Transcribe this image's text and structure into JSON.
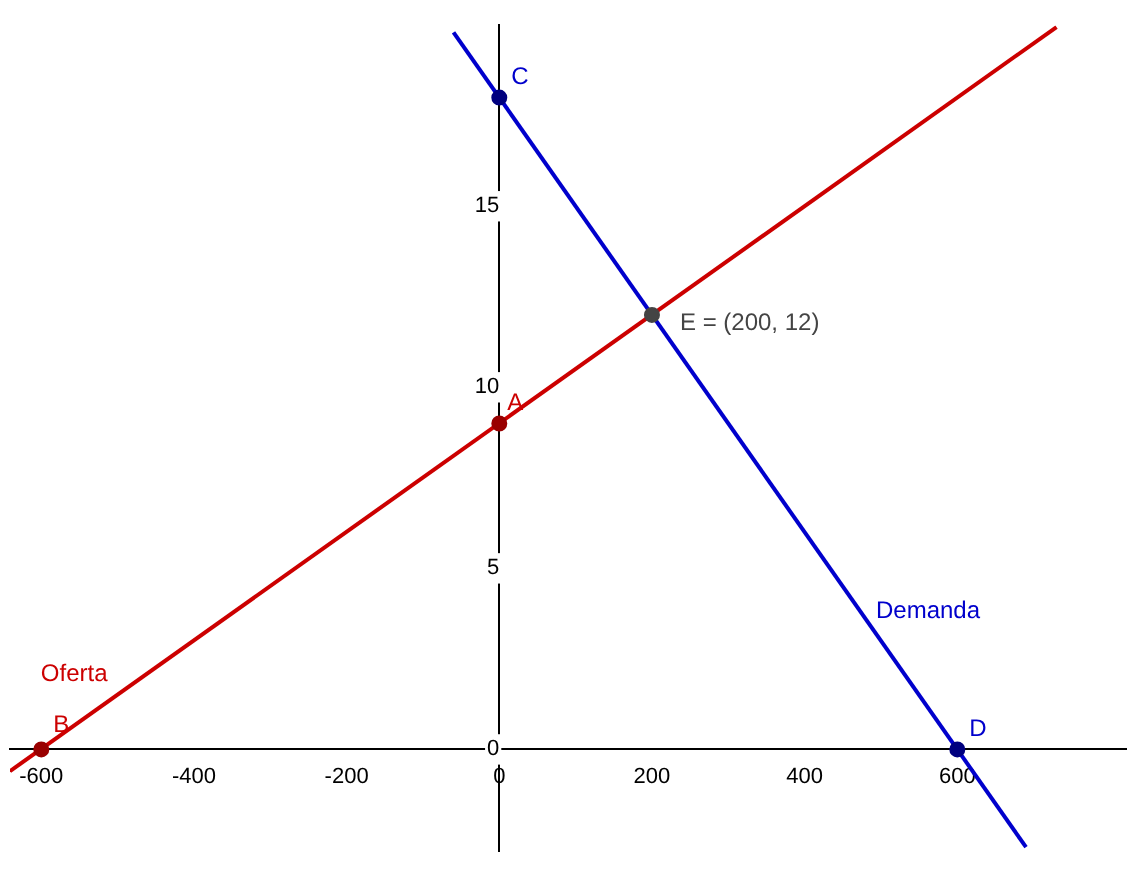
{
  "chart_data": {
    "type": "line",
    "xlim": [
      -641,
      821
    ],
    "ylim": [
      -2.8,
      20
    ],
    "xticks": [
      -600,
      -400,
      -200,
      0,
      200,
      400,
      600
    ],
    "yticks": [
      0,
      5,
      10,
      15
    ],
    "grid": false,
    "legend": false,
    "series": [
      {
        "name": "Oferta",
        "color": "#cc0000",
        "x": [
          -641,
          730
        ],
        "values": [
          -0.6,
          19.95
        ]
      },
      {
        "name": "Demanda",
        "color": "#0000cc",
        "x": [
          -60,
          690
        ],
        "values": [
          19.8,
          -2.7
        ]
      },
      {
        "type": "scatter",
        "marker": "circle",
        "x": [
          0,
          -600,
          0,
          600,
          200
        ],
        "values": [
          9,
          0,
          18,
          0,
          12
        ],
        "colors": [
          [
            "#990000"
          ],
          [
            "#990000"
          ],
          [
            "#00007f"
          ],
          [
            "#00007f"
          ],
          [
            "#444444"
          ]
        ]
      }
    ],
    "annotations": [
      {
        "text": "A",
        "x": 0,
        "y": 9
      },
      {
        "text": "B",
        "x": -600,
        "y": 0
      },
      {
        "text": "C",
        "x": 0,
        "y": 18
      },
      {
        "text": "D",
        "x": 600,
        "y": 0
      },
      {
        "text": "E = (200, 12)",
        "x": 200,
        "y": 12
      }
    ]
  }
}
